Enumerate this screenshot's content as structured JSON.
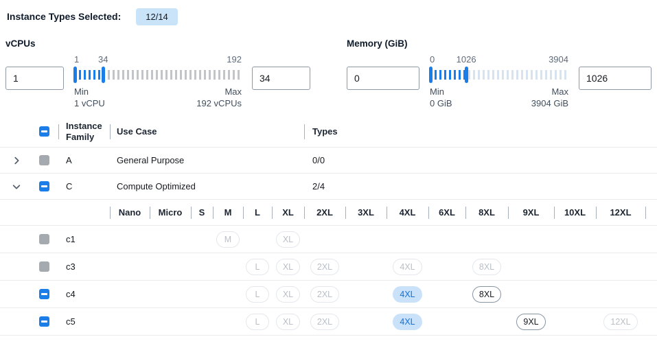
{
  "top": {
    "label": "Instance Types Selected:",
    "badge": "12/14"
  },
  "filters": {
    "vcpus": {
      "title": "vCPUs",
      "lower_value": "1",
      "upper_value": "34",
      "scale_min": "1",
      "scale_current": "34",
      "scale_max": "192",
      "min_caption": "Min",
      "min_sub": "1 vCPU",
      "max_caption": "Max",
      "max_sub": "192 vCPUs",
      "percent": 17.3
    },
    "memory": {
      "title": "Memory (GiB)",
      "lower_value": "0",
      "upper_value": "1026",
      "scale_min": "0",
      "scale_current": "1026",
      "scale_max": "3904",
      "min_caption": "Min",
      "min_sub": "0 GiB",
      "max_caption": "Max",
      "max_sub": "3904 GiB",
      "percent": 26.3
    }
  },
  "table": {
    "columns": {
      "family": "Instance Family",
      "use_case": "Use Case",
      "types": "Types"
    },
    "select_all_state": "indeterminate",
    "size_columns": [
      "Nano",
      "Micro",
      "S",
      "M",
      "L",
      "XL",
      "2XL",
      "3XL",
      "4XL",
      "6XL",
      "8XL",
      "9XL",
      "10XL",
      "12XL"
    ],
    "families": [
      {
        "name": "A",
        "use_case": "General Purpose",
        "types": "0/0",
        "expanded": false,
        "checkbox": "disabled"
      },
      {
        "name": "C",
        "use_case": "Compute Optimized",
        "types": "2/4",
        "expanded": true,
        "checkbox": "indeterminate"
      }
    ],
    "instance_rows": [
      {
        "name": "c1",
        "checkbox": "disabled",
        "pills": [
          {
            "label": "M",
            "state": "disabled"
          },
          {
            "label": "XL",
            "state": "disabled"
          }
        ]
      },
      {
        "name": "c3",
        "checkbox": "disabled",
        "pills": [
          {
            "label": "L",
            "state": "disabled"
          },
          {
            "label": "XL",
            "state": "disabled"
          },
          {
            "label": "2XL",
            "state": "disabled"
          },
          {
            "label": "4XL",
            "state": "disabled"
          },
          {
            "label": "8XL",
            "state": "disabled"
          }
        ]
      },
      {
        "name": "c4",
        "checkbox": "indeterminate",
        "pills": [
          {
            "label": "L",
            "state": "disabled"
          },
          {
            "label": "XL",
            "state": "disabled"
          },
          {
            "label": "2XL",
            "state": "disabled"
          },
          {
            "label": "4XL",
            "state": "selected"
          },
          {
            "label": "8XL",
            "state": "active"
          }
        ]
      },
      {
        "name": "c5",
        "checkbox": "indeterminate",
        "pills": [
          {
            "label": "L",
            "state": "disabled"
          },
          {
            "label": "XL",
            "state": "disabled"
          },
          {
            "label": "2XL",
            "state": "disabled"
          },
          {
            "label": "4XL",
            "state": "selected"
          },
          {
            "label": "9XL",
            "state": "active"
          },
          {
            "label": "12XL",
            "state": "disabled"
          }
        ]
      }
    ]
  },
  "colors": {
    "accent_blue": "#1a7de8",
    "selected_pill_bg": "#c9e2f9",
    "selected_pill_text": "#1770d4",
    "badge_bg": "#c9e3f9",
    "tick_inactive_vcpus": "#c2c4c8",
    "tick_inactive_memory": "#d9e3ef",
    "disabled_gray": "#a5a9b0"
  }
}
